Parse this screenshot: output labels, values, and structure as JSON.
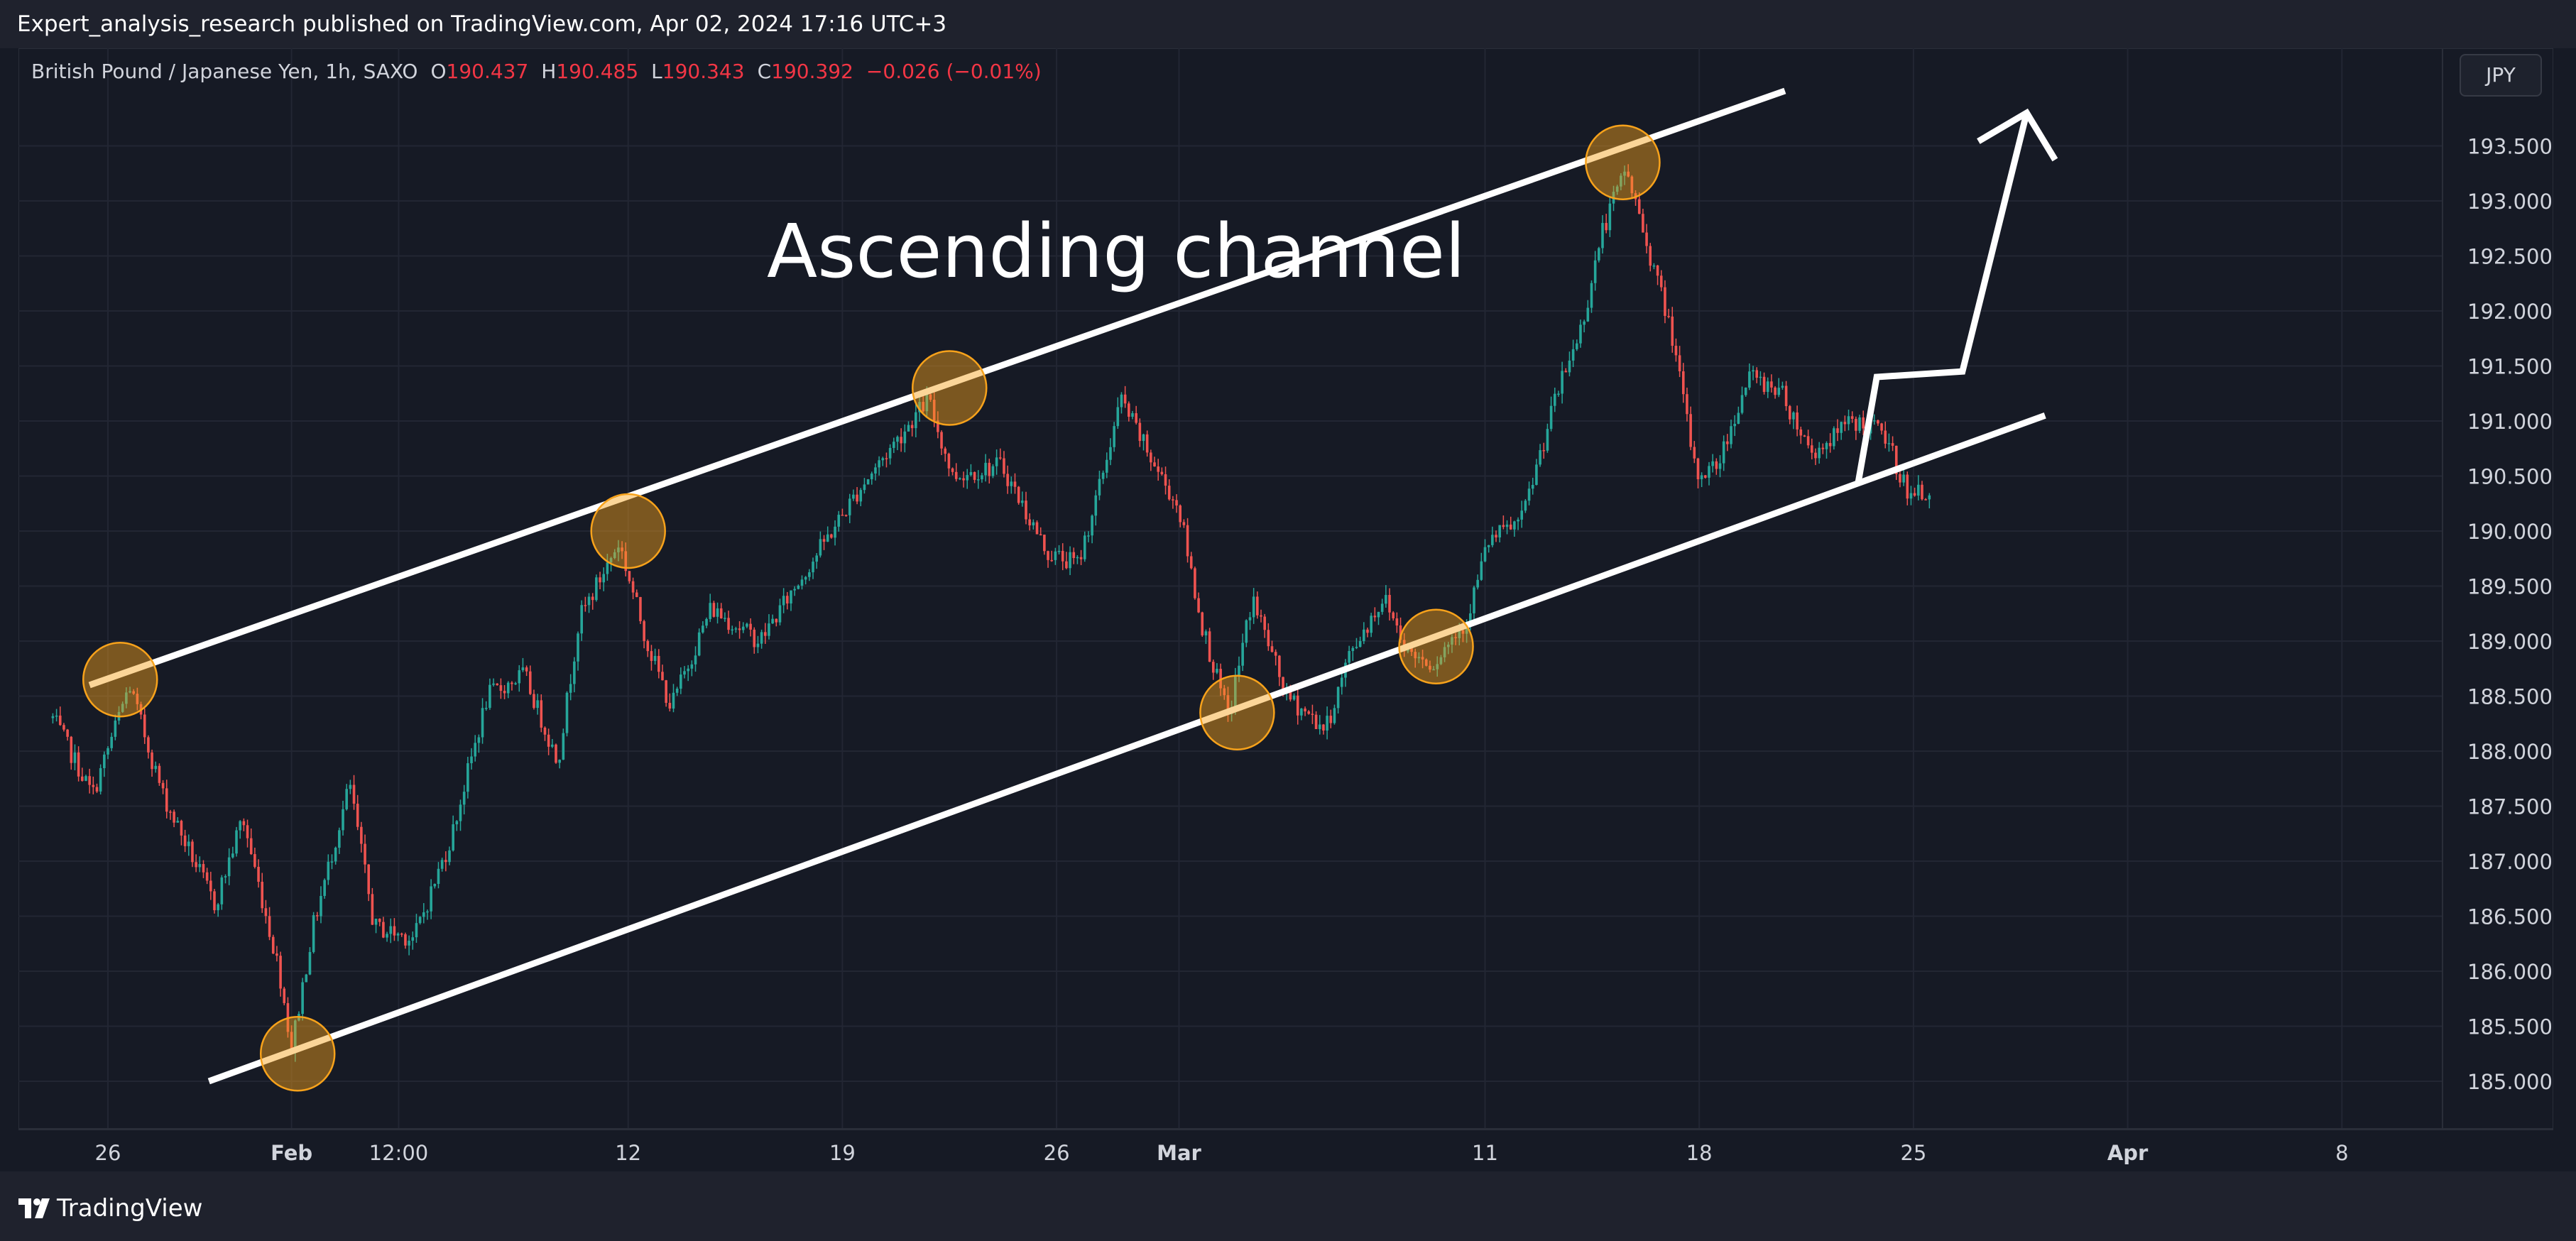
{
  "header": {
    "publish_text": "Expert_analysis_research published on TradingView.com, Apr 02, 2024 17:16 UTC+3"
  },
  "legend": {
    "symbol": "British Pound / Japanese Yen, 1h, SAXO",
    "open_label": "O",
    "open": "190.437",
    "high_label": "H",
    "high": "190.485",
    "low_label": "L",
    "low": "190.343",
    "close_label": "C",
    "close": "190.392",
    "change": "−0.026 (−0.01%)"
  },
  "currency_button": "JPY",
  "footer": {
    "brand": "TradingView"
  },
  "colors": {
    "background": "#161a25",
    "grid": "#222633",
    "up": "#26a69a",
    "down": "#ef5350",
    "channel_lines": "#ffffff",
    "touch_circle": "#f7a21b"
  },
  "chart_data": {
    "type": "candlestick",
    "title": "Ascending channel",
    "xlabel": "",
    "ylabel": "",
    "ylim": [
      184.6,
      194.2
    ],
    "y_ticks": [
      "193.500",
      "193.000",
      "192.500",
      "192.000",
      "191.500",
      "191.000",
      "190.500",
      "190.000",
      "189.500",
      "189.000",
      "188.500",
      "188.000",
      "187.500",
      "187.000",
      "186.500",
      "186.000",
      "185.500",
      "185.000"
    ],
    "x_range_days": [
      -2.0,
      48.0
    ],
    "x_ticks": [
      {
        "label": "26",
        "day": 0,
        "bold": false
      },
      {
        "label": "Feb",
        "day": 6,
        "bold": true
      },
      {
        "label": "12:00",
        "day": 9.5,
        "bold": false
      },
      {
        "label": "12",
        "day": 17,
        "bold": false
      },
      {
        "label": "19",
        "day": 24,
        "bold": false
      },
      {
        "label": "26",
        "day": 31,
        "bold": false
      },
      {
        "label": "Mar",
        "day": 35,
        "bold": true
      },
      {
        "label": "11",
        "day": 45,
        "bold": false
      },
      {
        "label": "18",
        "day": 52,
        "bold": false
      },
      {
        "label": "25",
        "day": 59,
        "bold": false
      },
      {
        "label": "Apr",
        "day": 66,
        "bold": true
      },
      {
        "label": "8",
        "day": 73,
        "bold": false
      }
    ],
    "price_path": [
      [
        -1.8,
        188.3
      ],
      [
        -0.5,
        187.6
      ],
      [
        0.7,
        188.6
      ],
      [
        1.8,
        187.6
      ],
      [
        3.5,
        186.6
      ],
      [
        4.4,
        187.4
      ],
      [
        5.6,
        186.0
      ],
      [
        6.0,
        185.3
      ],
      [
        6.7,
        186.4
      ],
      [
        7.9,
        187.7
      ],
      [
        8.7,
        186.4
      ],
      [
        10.0,
        186.3
      ],
      [
        11.2,
        187.2
      ],
      [
        12.4,
        188.5
      ],
      [
        13.6,
        188.7
      ],
      [
        14.7,
        187.9
      ],
      [
        15.4,
        189.2
      ],
      [
        16.7,
        189.9
      ],
      [
        17.6,
        189.0
      ],
      [
        18.4,
        188.4
      ],
      [
        19.7,
        189.3
      ],
      [
        21.3,
        189.0
      ],
      [
        22.7,
        189.6
      ],
      [
        24.6,
        190.4
      ],
      [
        26.8,
        191.2
      ],
      [
        27.6,
        190.5
      ],
      [
        29.2,
        190.6
      ],
      [
        30.7,
        189.8
      ],
      [
        31.7,
        189.7
      ],
      [
        32.4,
        190.4
      ],
      [
        33.1,
        191.2
      ],
      [
        34.0,
        190.7
      ],
      [
        35.0,
        190.2
      ],
      [
        35.7,
        189.2
      ],
      [
        36.6,
        188.3
      ],
      [
        37.4,
        189.4
      ],
      [
        38.5,
        188.5
      ],
      [
        39.8,
        188.2
      ],
      [
        40.6,
        188.9
      ],
      [
        41.7,
        189.4
      ],
      [
        42.5,
        188.9
      ],
      [
        43.3,
        188.8
      ],
      [
        44.4,
        189.2
      ],
      [
        45.1,
        189.9
      ],
      [
        46.2,
        190.1
      ],
      [
        47.3,
        191.2
      ],
      [
        48.2,
        191.9
      ],
      [
        48.8,
        192.7
      ],
      [
        49.6,
        193.3
      ],
      [
        50.3,
        192.6
      ],
      [
        51.1,
        191.8
      ],
      [
        51.9,
        190.5
      ],
      [
        52.6,
        190.6
      ],
      [
        53.6,
        191.4
      ],
      [
        54.6,
        191.3
      ],
      [
        55.7,
        190.7
      ],
      [
        57.0,
        191.0
      ],
      [
        58.0,
        190.9
      ],
      [
        58.9,
        190.3
      ],
      [
        59.6,
        190.4
      ]
    ],
    "annotations": {
      "channel_upper": [
        [
          -0.6,
          188.6
        ],
        [
          54.8,
          194.0
        ]
      ],
      "channel_lower": [
        [
          3.3,
          185.0
        ],
        [
          63.3,
          191.05
        ]
      ],
      "projection_path": [
        [
          57.2,
          190.45
        ],
        [
          57.8,
          191.4
        ],
        [
          60.6,
          191.45
        ],
        [
          62.7,
          193.8
        ]
      ],
      "touch_points": [
        {
          "day": 0.4,
          "price": 188.65
        },
        {
          "day": 6.2,
          "price": 185.25
        },
        {
          "day": 17.0,
          "price": 190.0
        },
        {
          "day": 27.5,
          "price": 191.3
        },
        {
          "day": 36.9,
          "price": 188.35
        },
        {
          "day": 43.4,
          "price": 188.95
        },
        {
          "day": 49.5,
          "price": 193.35
        }
      ]
    }
  }
}
